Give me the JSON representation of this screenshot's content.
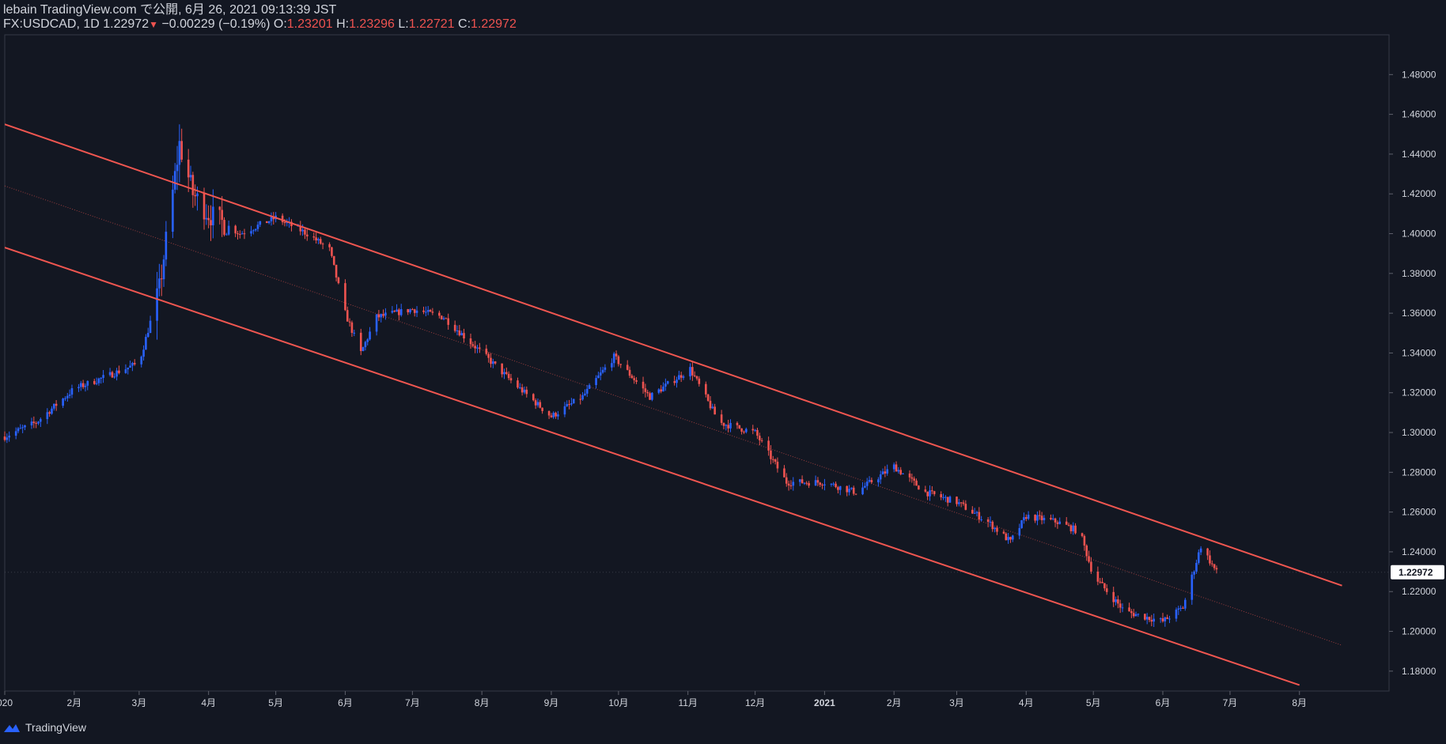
{
  "header": {
    "publish_line": "lebain TradingView.com で公開, 6月 26, 2021 09:13:39 JST",
    "symbol": "FX:USDCAD, 1D",
    "last": "1.22972",
    "change": "−0.00229 (−0.19%)",
    "o_label": "O:",
    "o": "1.23201",
    "h_label": "H:",
    "h": "1.23296",
    "l_label": "L:",
    "l": "1.22721",
    "c_label": "C:",
    "c": "1.22972"
  },
  "footer": {
    "brand": "TradingView"
  },
  "colors": {
    "background": "#131722",
    "up": "#2962ff",
    "down": "#ef5350",
    "channel": "#f05650",
    "text": "#d1d4dc",
    "grid": "#363a45"
  },
  "chart_data": {
    "type": "candlestick",
    "title": "",
    "symbol": "FX:USDCAD",
    "interval": "1D",
    "ylim": [
      1.17,
      1.5
    ],
    "y_ticks": [
      "1.48000",
      "1.46000",
      "1.44000",
      "1.42000",
      "1.40000",
      "1.38000",
      "1.36000",
      "1.34000",
      "1.32000",
      "1.30000",
      "1.28000",
      "1.26000",
      "1.24000",
      "1.22000",
      "1.20000",
      "1.18000"
    ],
    "x_ticks": [
      {
        "label": "020",
        "date": "2020-01-01"
      },
      {
        "label": "2月",
        "date": "2020-02-01"
      },
      {
        "label": "3月",
        "date": "2020-03-01"
      },
      {
        "label": "4月",
        "date": "2020-04-01"
      },
      {
        "label": "5月",
        "date": "2020-05-01"
      },
      {
        "label": "6月",
        "date": "2020-06-01"
      },
      {
        "label": "7月",
        "date": "2020-07-01"
      },
      {
        "label": "8月",
        "date": "2020-08-01"
      },
      {
        "label": "9月",
        "date": "2020-09-01"
      },
      {
        "label": "10月",
        "date": "2020-10-01"
      },
      {
        "label": "11月",
        "date": "2020-11-01"
      },
      {
        "label": "12月",
        "date": "2020-12-01"
      },
      {
        "label": "2021",
        "date": "2021-01-01"
      },
      {
        "label": "2月",
        "date": "2021-02-01"
      },
      {
        "label": "3月",
        "date": "2021-03-01"
      },
      {
        "label": "4月",
        "date": "2021-04-01"
      },
      {
        "label": "5月",
        "date": "2021-05-01"
      },
      {
        "label": "6月",
        "date": "2021-06-01"
      },
      {
        "label": "7月",
        "date": "2021-07-01"
      },
      {
        "label": "8月",
        "date": "2021-08-01"
      }
    ],
    "series_close": [
      [
        "2020-01-01",
        1.298
      ],
      [
        "2020-01-15",
        1.305
      ],
      [
        "2020-02-01",
        1.322
      ],
      [
        "2020-02-15",
        1.328
      ],
      [
        "2020-03-01",
        1.335
      ],
      [
        "2020-03-10",
        1.372
      ],
      [
        "2020-03-19",
        1.445
      ],
      [
        "2020-03-25",
        1.42
      ],
      [
        "2020-04-01",
        1.41
      ],
      [
        "2020-04-15",
        1.4
      ],
      [
        "2020-05-01",
        1.408
      ],
      [
        "2020-05-15",
        1.4
      ],
      [
        "2020-05-25",
        1.392
      ],
      [
        "2020-06-01",
        1.36
      ],
      [
        "2020-06-08",
        1.34
      ],
      [
        "2020-06-15",
        1.358
      ],
      [
        "2020-07-01",
        1.362
      ],
      [
        "2020-07-15",
        1.358
      ],
      [
        "2020-08-01",
        1.34
      ],
      [
        "2020-08-15",
        1.325
      ],
      [
        "2020-09-01",
        1.308
      ],
      [
        "2020-09-15",
        1.318
      ],
      [
        "2020-09-29",
        1.338
      ],
      [
        "2020-10-15",
        1.318
      ],
      [
        "2020-11-02",
        1.332
      ],
      [
        "2020-11-15",
        1.305
      ],
      [
        "2020-12-01",
        1.3
      ],
      [
        "2020-12-15",
        1.275
      ],
      [
        "2021-01-01",
        1.275
      ],
      [
        "2021-01-15",
        1.27
      ],
      [
        "2021-02-01",
        1.283
      ],
      [
        "2021-02-15",
        1.27
      ],
      [
        "2021-03-01",
        1.265
      ],
      [
        "2021-03-15",
        1.255
      ],
      [
        "2021-03-25",
        1.245
      ],
      [
        "2021-04-01",
        1.258
      ],
      [
        "2021-04-15",
        1.255
      ],
      [
        "2021-04-25",
        1.25
      ],
      [
        "2021-05-01",
        1.228
      ],
      [
        "2021-05-15",
        1.21
      ],
      [
        "2021-06-01",
        1.205
      ],
      [
        "2021-06-10",
        1.212
      ],
      [
        "2021-06-18",
        1.243
      ],
      [
        "2021-06-25",
        1.22972
      ]
    ],
    "channel": {
      "upper": [
        [
          "2020-01-01",
          1.455
        ],
        [
          "2021-08-20",
          1.223
        ]
      ],
      "lower": [
        [
          "2020-01-01",
          1.393
        ],
        [
          "2021-08-01",
          1.173
        ]
      ],
      "mid": [
        [
          "2020-01-01",
          1.424
        ],
        [
          "2021-08-20",
          1.193
        ]
      ]
    },
    "last_price": "1.22972"
  }
}
